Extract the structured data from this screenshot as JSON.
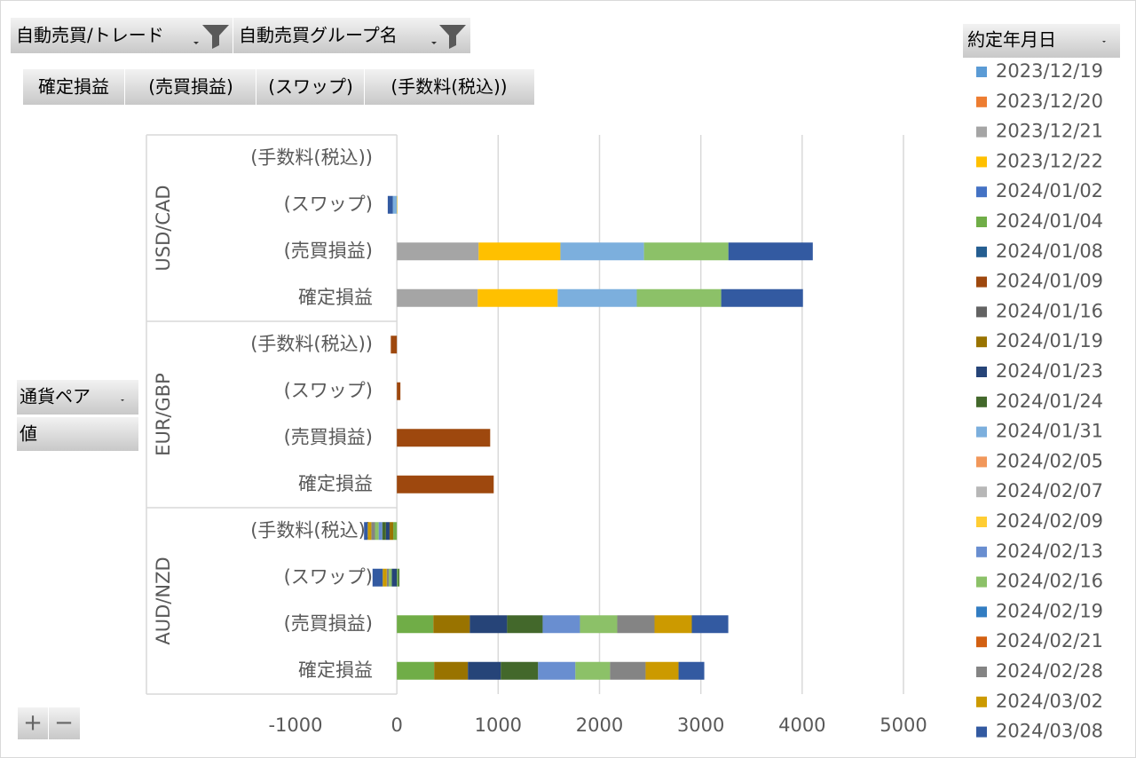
{
  "ui": {
    "filters": [
      "自動売買/トレード",
      "自動売買グループ名"
    ],
    "value_fields": [
      "確定損益",
      "(売買損益)",
      "(スワップ)",
      "(手数料(税込))"
    ],
    "row_field": "通貨ペア",
    "row_value": "値",
    "buttons": [
      "+",
      "−"
    ]
  },
  "chart_data": {
    "type": "stacked_bar_horizontal",
    "legend_title": "約定年月日",
    "legend": "right",
    "groups": [
      "USD/CAD",
      "EUR/GBP",
      "AUD/NZD"
    ],
    "categories": [
      "(手数料(税込))",
      "(スワップ)",
      "(売買損益)",
      "確定損益"
    ],
    "xlim": [
      -1000,
      5000
    ],
    "xticks": [
      -1000,
      0,
      1000,
      2000,
      3000,
      4000,
      5000
    ],
    "grid": true,
    "series": [
      {
        "name": "2023/12/19",
        "color": "#5B9BD5",
        "values": [
          [
            null,
            null,
            null,
            null
          ],
          [
            null,
            null,
            null,
            null
          ],
          [
            null,
            null,
            null,
            null
          ]
        ]
      },
      {
        "name": "2023/12/20",
        "color": "#ED7D31",
        "values": [
          [
            null,
            null,
            null,
            null
          ],
          [
            null,
            null,
            null,
            null
          ],
          [
            null,
            null,
            null,
            null
          ]
        ]
      },
      {
        "name": "2023/12/21",
        "color": "#A5A5A5",
        "values": [
          [
            null,
            null,
            807,
            798
          ],
          [
            null,
            null,
            null,
            null
          ],
          [
            null,
            null,
            null,
            null
          ]
        ]
      },
      {
        "name": "2023/12/22",
        "color": "#FFC000",
        "values": [
          [
            null,
            5,
            807,
            789
          ],
          [
            null,
            null,
            null,
            null
          ],
          [
            null,
            null,
            null,
            null
          ]
        ]
      },
      {
        "name": "2024/01/02",
        "color": "#4472C4",
        "values": [
          [
            null,
            null,
            null,
            null
          ],
          [
            null,
            null,
            null,
            null
          ],
          [
            null,
            null,
            null,
            null
          ]
        ]
      },
      {
        "name": "2024/01/04",
        "color": "#70AD47",
        "values": [
          [
            null,
            null,
            null,
            null
          ],
          [
            null,
            null,
            null,
            null
          ],
          [
            -36,
            15,
            360,
            368
          ]
        ]
      },
      {
        "name": "2024/01/08",
        "color": "#255E91",
        "values": [
          [
            null,
            null,
            null,
            null
          ],
          [
            null,
            null,
            null,
            null
          ],
          [
            null,
            null,
            null,
            null
          ]
        ]
      },
      {
        "name": "2024/01/09",
        "color": "#9E480E",
        "values": [
          [
            null,
            null,
            null,
            null
          ],
          [
            -60,
            35,
            921,
            956
          ],
          [
            null,
            null,
            null,
            null
          ]
        ]
      },
      {
        "name": "2024/01/16",
        "color": "#636363",
        "values": [
          [
            null,
            null,
            null,
            null
          ],
          [
            null,
            null,
            null,
            null
          ],
          [
            null,
            null,
            null,
            null
          ]
        ]
      },
      {
        "name": "2024/01/19",
        "color": "#997300",
        "values": [
          [
            null,
            null,
            null,
            null
          ],
          [
            null,
            null,
            null,
            null
          ],
          [
            -36,
            null,
            360,
            333
          ]
        ]
      },
      {
        "name": "2024/01/23",
        "color": "#264478",
        "values": [
          [
            null,
            null,
            null,
            null
          ],
          [
            null,
            null,
            null,
            null
          ],
          [
            -36,
            -50,
            368,
            325
          ]
        ]
      },
      {
        "name": "2024/01/24",
        "color": "#43682B",
        "values": [
          [
            null,
            null,
            null,
            null
          ],
          [
            null,
            null,
            null,
            null
          ],
          [
            -36,
            10,
            351,
            368
          ]
        ]
      },
      {
        "name": "2024/01/31",
        "color": "#7CAFDD",
        "values": [
          [
            null,
            -40,
            825,
            781
          ],
          [
            null,
            null,
            null,
            null
          ],
          [
            null,
            null,
            null,
            null
          ]
        ]
      },
      {
        "name": "2024/02/05",
        "color": "#F1975A",
        "values": [
          [
            null,
            null,
            null,
            null
          ],
          [
            null,
            null,
            null,
            null
          ],
          [
            null,
            null,
            null,
            null
          ]
        ]
      },
      {
        "name": "2024/02/07",
        "color": "#B7B7B7",
        "values": [
          [
            null,
            null,
            null,
            null
          ],
          [
            null,
            null,
            null,
            null
          ],
          [
            null,
            null,
            null,
            null
          ]
        ]
      },
      {
        "name": "2024/02/09",
        "color": "#FFCD33",
        "values": [
          [
            null,
            null,
            null,
            null
          ],
          [
            null,
            null,
            null,
            null
          ],
          [
            null,
            null,
            null,
            null
          ]
        ]
      },
      {
        "name": "2024/02/13",
        "color": "#698ED0",
        "values": [
          [
            null,
            null,
            null,
            null
          ],
          [
            null,
            null,
            null,
            null
          ],
          [
            -36,
            null,
            368,
            368
          ]
        ]
      },
      {
        "name": "2024/02/16",
        "color": "#8CC168",
        "values": [
          [
            null,
            null,
            833,
            833
          ],
          [
            null,
            null,
            null,
            null
          ],
          [
            -36,
            -30,
            368,
            342
          ]
        ]
      },
      {
        "name": "2024/02/19",
        "color": "#327DC2",
        "values": [
          [
            null,
            null,
            null,
            null
          ],
          [
            null,
            null,
            null,
            null
          ],
          [
            null,
            null,
            null,
            null
          ]
        ]
      },
      {
        "name": "2024/02/21",
        "color": "#D26012",
        "values": [
          [
            null,
            null,
            null,
            null
          ],
          [
            null,
            null,
            null,
            null
          ],
          [
            null,
            null,
            null,
            null
          ]
        ]
      },
      {
        "name": "2024/02/28",
        "color": "#848484",
        "values": [
          [
            null,
            null,
            null,
            null
          ],
          [
            null,
            null,
            null,
            null
          ],
          [
            -36,
            -20,
            368,
            351
          ]
        ]
      },
      {
        "name": "2024/03/02",
        "color": "#CC9A00",
        "values": [
          [
            null,
            null,
            null,
            null
          ],
          [
            null,
            null,
            null,
            null
          ],
          [
            -36,
            -40,
            368,
            325
          ]
        ]
      },
      {
        "name": "2024/03/08",
        "color": "#335AA1",
        "values": [
          [
            null,
            -50,
            833,
            807
          ],
          [
            null,
            null,
            null,
            null
          ],
          [
            -36,
            -100,
            360,
            254
          ]
        ]
      }
    ]
  }
}
